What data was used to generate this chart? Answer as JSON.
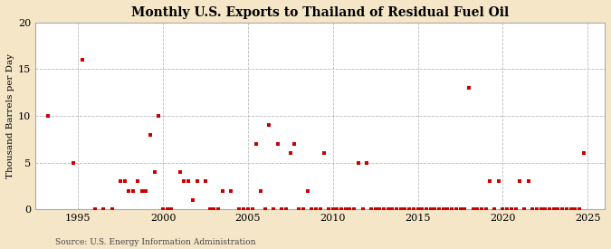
{
  "title": "Monthly U.S. Exports to Thailand of Residual Fuel Oil",
  "ylabel": "Thousand Barrels per Day",
  "source": "Source: U.S. Energy Information Administration",
  "background_color": "#f5e6c8",
  "plot_background_color": "#ffffff",
  "marker_color": "#cc0000",
  "marker": "s",
  "marker_size": 3,
  "xlim": [
    1992.5,
    2026
  ],
  "ylim": [
    0,
    20
  ],
  "yticks": [
    0,
    5,
    10,
    15,
    20
  ],
  "xticks": [
    1995,
    2000,
    2005,
    2010,
    2015,
    2020,
    2025
  ],
  "title_fontsize": 10,
  "ylabel_fontsize": 7.5,
  "tick_fontsize": 8,
  "source_fontsize": 6.5,
  "data": [
    [
      1993.25,
      10
    ],
    [
      1994.75,
      5
    ],
    [
      1995.25,
      16
    ],
    [
      1997.5,
      3
    ],
    [
      1997.75,
      3
    ],
    [
      1998.0,
      2
    ],
    [
      1998.25,
      2
    ],
    [
      1998.5,
      3
    ],
    [
      1998.75,
      2
    ],
    [
      1999.0,
      2
    ],
    [
      1999.25,
      8
    ],
    [
      1999.5,
      4
    ],
    [
      1999.75,
      10
    ],
    [
      2001.0,
      4
    ],
    [
      2001.25,
      3
    ],
    [
      2001.5,
      3
    ],
    [
      2001.75,
      1
    ],
    [
      2002.0,
      3
    ],
    [
      2002.5,
      3
    ],
    [
      2003.5,
      2
    ],
    [
      2004.0,
      2
    ],
    [
      2005.5,
      7
    ],
    [
      2005.75,
      2
    ],
    [
      2006.25,
      9
    ],
    [
      2006.75,
      7
    ],
    [
      2007.5,
      6
    ],
    [
      2007.75,
      7
    ],
    [
      2008.5,
      2
    ],
    [
      2009.5,
      6
    ],
    [
      2011.5,
      5
    ],
    [
      2012.0,
      5
    ],
    [
      2018.0,
      13
    ],
    [
      2019.25,
      3
    ],
    [
      2019.75,
      3
    ],
    [
      2021.0,
      3
    ],
    [
      2021.5,
      3
    ],
    [
      2024.75,
      6
    ],
    [
      1996.0,
      0
    ],
    [
      1996.5,
      0
    ],
    [
      1997.0,
      0
    ],
    [
      2000.0,
      0
    ],
    [
      2000.25,
      0
    ],
    [
      2000.5,
      0
    ],
    [
      2002.75,
      0
    ],
    [
      2003.0,
      0
    ],
    [
      2003.25,
      0
    ],
    [
      2004.5,
      0
    ],
    [
      2004.75,
      0
    ],
    [
      2005.0,
      0
    ],
    [
      2005.25,
      0
    ],
    [
      2006.0,
      0
    ],
    [
      2006.5,
      0
    ],
    [
      2007.0,
      0
    ],
    [
      2007.25,
      0
    ],
    [
      2008.0,
      0
    ],
    [
      2008.25,
      0
    ],
    [
      2008.75,
      0
    ],
    [
      2009.0,
      0
    ],
    [
      2009.25,
      0
    ],
    [
      2009.75,
      0
    ],
    [
      2010.0,
      0
    ],
    [
      2010.25,
      0
    ],
    [
      2010.5,
      0
    ],
    [
      2010.75,
      0
    ],
    [
      2011.0,
      0
    ],
    [
      2011.25,
      0
    ],
    [
      2011.75,
      0
    ],
    [
      2012.25,
      0
    ],
    [
      2012.5,
      0
    ],
    [
      2012.75,
      0
    ],
    [
      2013.0,
      0
    ],
    [
      2013.25,
      0
    ],
    [
      2013.5,
      0
    ],
    [
      2013.75,
      0
    ],
    [
      2014.0,
      0
    ],
    [
      2014.25,
      0
    ],
    [
      2014.5,
      0
    ],
    [
      2014.75,
      0
    ],
    [
      2015.0,
      0
    ],
    [
      2015.25,
      0
    ],
    [
      2015.5,
      0
    ],
    [
      2015.75,
      0
    ],
    [
      2016.0,
      0
    ],
    [
      2016.25,
      0
    ],
    [
      2016.5,
      0
    ],
    [
      2016.75,
      0
    ],
    [
      2017.0,
      0
    ],
    [
      2017.25,
      0
    ],
    [
      2017.5,
      0
    ],
    [
      2017.75,
      0
    ],
    [
      2018.25,
      0
    ],
    [
      2018.5,
      0
    ],
    [
      2018.75,
      0
    ],
    [
      2019.0,
      0
    ],
    [
      2019.5,
      0
    ],
    [
      2020.0,
      0
    ],
    [
      2020.25,
      0
    ],
    [
      2020.5,
      0
    ],
    [
      2020.75,
      0
    ],
    [
      2021.25,
      0
    ],
    [
      2021.75,
      0
    ],
    [
      2022.0,
      0
    ],
    [
      2022.25,
      0
    ],
    [
      2022.5,
      0
    ],
    [
      2022.75,
      0
    ],
    [
      2023.0,
      0
    ],
    [
      2023.25,
      0
    ],
    [
      2023.5,
      0
    ],
    [
      2023.75,
      0
    ],
    [
      2024.0,
      0
    ],
    [
      2024.25,
      0
    ],
    [
      2024.5,
      0
    ]
  ]
}
